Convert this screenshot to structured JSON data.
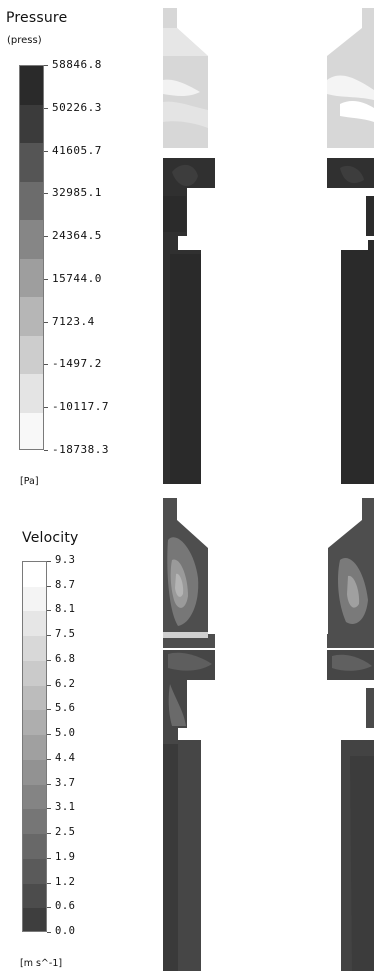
{
  "pressure_legend": {
    "title": "Pressure",
    "subtitle": "(press)",
    "unit": "[Pa]",
    "ticks": [
      "58846.8",
      "50226.3",
      "41605.7",
      "32985.1",
      "24364.5",
      "15744.0",
      "7123.4",
      "-1497.2",
      "-10117.7",
      "-18738.3"
    ],
    "band_colors": [
      "#2a2a2a",
      "#3b3b3b",
      "#555555",
      "#6c6c6c",
      "#868686",
      "#9e9e9e",
      "#b6b6b6",
      "#cdcdcd",
      "#e4e4e4",
      "#f8f8f8"
    ]
  },
  "velocity_legend": {
    "title": "Velocity",
    "unit": "[m  s^-1]",
    "ticks": [
      "9.3",
      "8.7",
      "8.1",
      "7.5",
      "6.8",
      "6.2",
      "5.6",
      "5.0",
      "4.4",
      "3.7",
      "3.1",
      "2.5",
      "1.9",
      "1.2",
      "0.6",
      "0.0"
    ],
    "band_colors": [
      "#ffffff",
      "#f4f4f4",
      "#e6e6e6",
      "#d8d8d8",
      "#cacaca",
      "#bcbcbc",
      "#aeaeae",
      "#a0a0a0",
      "#929292",
      "#848484",
      "#767676",
      "#686868",
      "#5a5a5a",
      "#4c4c4c",
      "#3e3e3e"
    ]
  }
}
